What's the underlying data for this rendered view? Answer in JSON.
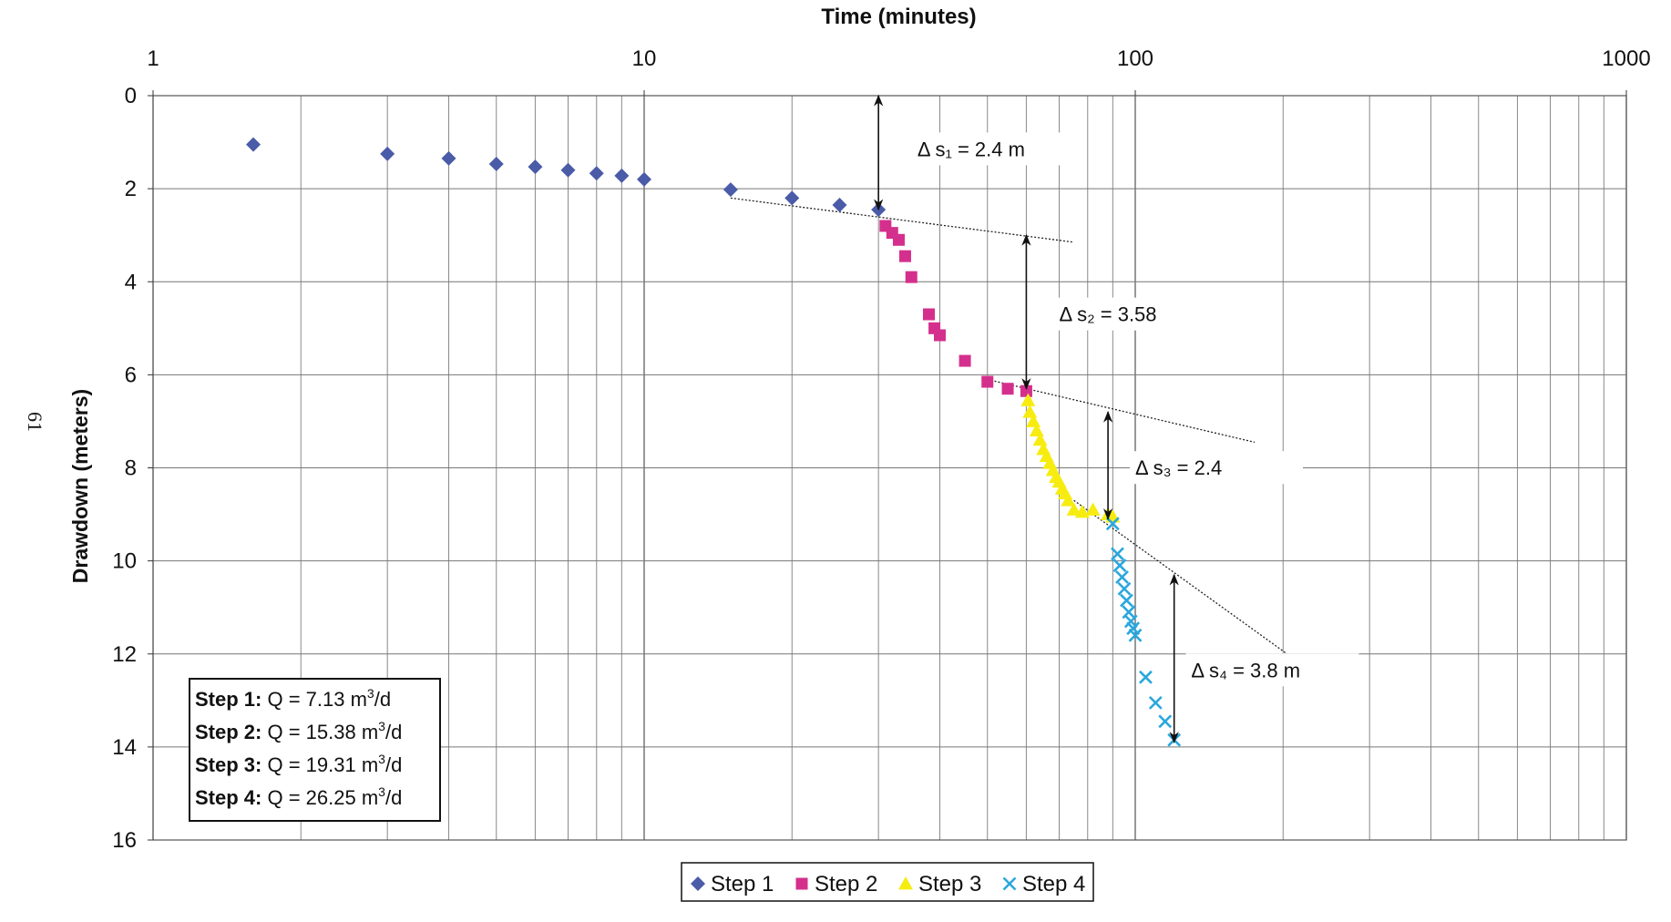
{
  "page_number": "61",
  "chart_data": {
    "type": "scatter",
    "title": "",
    "xlabel": "Time (minutes)",
    "ylabel": "Drawdown (meters)",
    "xscale": "log",
    "xlim": [
      1,
      1000
    ],
    "ylim": [
      16,
      0
    ],
    "x_axis_position": "top",
    "y_axis_inverted": true,
    "x_ticks": [
      1,
      10,
      100,
      1000
    ],
    "x_tick_labels": [
      "1",
      "10",
      "100",
      "1000"
    ],
    "y_ticks": [
      0,
      2,
      4,
      6,
      8,
      10,
      12,
      14,
      16
    ],
    "y_tick_labels": [
      "0",
      "2",
      "4",
      "6",
      "8",
      "10",
      "12",
      "14",
      "16"
    ],
    "grid": true,
    "legend_position": "bottom",
    "series": [
      {
        "name": "Step 1",
        "marker": "diamond",
        "color": "#4a5ba8",
        "points": [
          [
            1.6,
            1.05
          ],
          [
            3.0,
            1.25
          ],
          [
            4.0,
            1.35
          ],
          [
            5.0,
            1.47
          ],
          [
            6.0,
            1.53
          ],
          [
            7.0,
            1.6
          ],
          [
            8.0,
            1.67
          ],
          [
            9.0,
            1.72
          ],
          [
            10.0,
            1.8
          ],
          [
            15.0,
            2.02
          ],
          [
            20.0,
            2.2
          ],
          [
            25.0,
            2.35
          ],
          [
            30.0,
            2.45
          ]
        ]
      },
      {
        "name": "Step 2",
        "marker": "square",
        "color": "#d52f8d",
        "points": [
          [
            31.0,
            2.8
          ],
          [
            32.0,
            2.95
          ],
          [
            33.0,
            3.1
          ],
          [
            34.0,
            3.45
          ],
          [
            35.0,
            3.9
          ],
          [
            38.0,
            4.7
          ],
          [
            39.0,
            5.0
          ],
          [
            40.0,
            5.15
          ],
          [
            45.0,
            5.7
          ],
          [
            50.0,
            6.15
          ],
          [
            55.0,
            6.3
          ],
          [
            60.0,
            6.35
          ]
        ]
      },
      {
        "name": "Step 3",
        "marker": "triangle",
        "color": "#f7ec10",
        "points": [
          [
            60.5,
            6.55
          ],
          [
            61.0,
            6.8
          ],
          [
            62.0,
            7.0
          ],
          [
            63.0,
            7.2
          ],
          [
            64.0,
            7.4
          ],
          [
            65.0,
            7.6
          ],
          [
            66.0,
            7.75
          ],
          [
            67.0,
            7.9
          ],
          [
            68.0,
            8.05
          ],
          [
            69.0,
            8.2
          ],
          [
            70.0,
            8.3
          ],
          [
            71.0,
            8.45
          ],
          [
            72.0,
            8.55
          ],
          [
            73.0,
            8.7
          ],
          [
            75.0,
            8.9
          ],
          [
            78.0,
            8.95
          ],
          [
            82.0,
            8.9
          ],
          [
            88.0,
            9.0
          ],
          [
            90.0,
            9.05
          ]
        ]
      },
      {
        "name": "Step 4",
        "marker": "x",
        "color": "#2aa7dd",
        "points": [
          [
            90.0,
            9.2
          ],
          [
            92.0,
            9.85
          ],
          [
            93.0,
            10.1
          ],
          [
            94.0,
            10.35
          ],
          [
            95.0,
            10.6
          ],
          [
            96.0,
            10.85
          ],
          [
            97.0,
            11.1
          ],
          [
            98.0,
            11.3
          ],
          [
            99.0,
            11.45
          ],
          [
            100.0,
            11.6
          ],
          [
            105.0,
            12.5
          ],
          [
            110.0,
            13.05
          ],
          [
            115.0,
            13.45
          ],
          [
            120.0,
            13.85
          ]
        ]
      }
    ],
    "trend_lines": [
      {
        "from": [
          15.0,
          2.2
        ],
        "to": [
          75.0,
          3.15
        ]
      },
      {
        "from": [
          50.0,
          6.1
        ],
        "to": [
          175.0,
          7.45
        ]
      },
      {
        "from": [
          75.0,
          8.7
        ],
        "to": [
          210.0,
          12.1
        ]
      }
    ],
    "annotations": [
      {
        "text": "Δ s₁ = 2.4 m",
        "arrow_x": 30.0,
        "arrow_from_y": 0.0,
        "arrow_to_y": 2.45,
        "label_x": 36.0,
        "label_y": 1.3
      },
      {
        "text": "Δ s₂ = 3.58",
        "arrow_x": 60.0,
        "arrow_from_y": 3.0,
        "arrow_to_y": 6.3,
        "label_x": 70.0,
        "label_y": 4.85
      },
      {
        "text": "Δ s₃ = 2.4",
        "arrow_x": 88.0,
        "arrow_from_y": 6.8,
        "arrow_to_y": 9.1,
        "label_x": 100.0,
        "label_y": 8.15
      },
      {
        "text": "Δ s₄ = 3.8 m",
        "arrow_x": 120.0,
        "arrow_from_y": 10.3,
        "arrow_to_y": 13.9,
        "label_x": 130.0,
        "label_y": 12.5
      }
    ],
    "steps_box": [
      {
        "step": "Step 1:",
        "q": "Q = 7.13 m",
        "unit_sup": "3",
        "unit_tail": "/d"
      },
      {
        "step": "Step 2:",
        "q": "Q = 15.38 m",
        "unit_sup": "3",
        "unit_tail": "/d"
      },
      {
        "step": "Step 3:",
        "q": "Q = 19.31 m",
        "unit_sup": "3",
        "unit_tail": "/d"
      },
      {
        "step": "Step 4:",
        "q": "Q = 26.25 m",
        "unit_sup": "3",
        "unit_tail": "/d"
      }
    ]
  }
}
